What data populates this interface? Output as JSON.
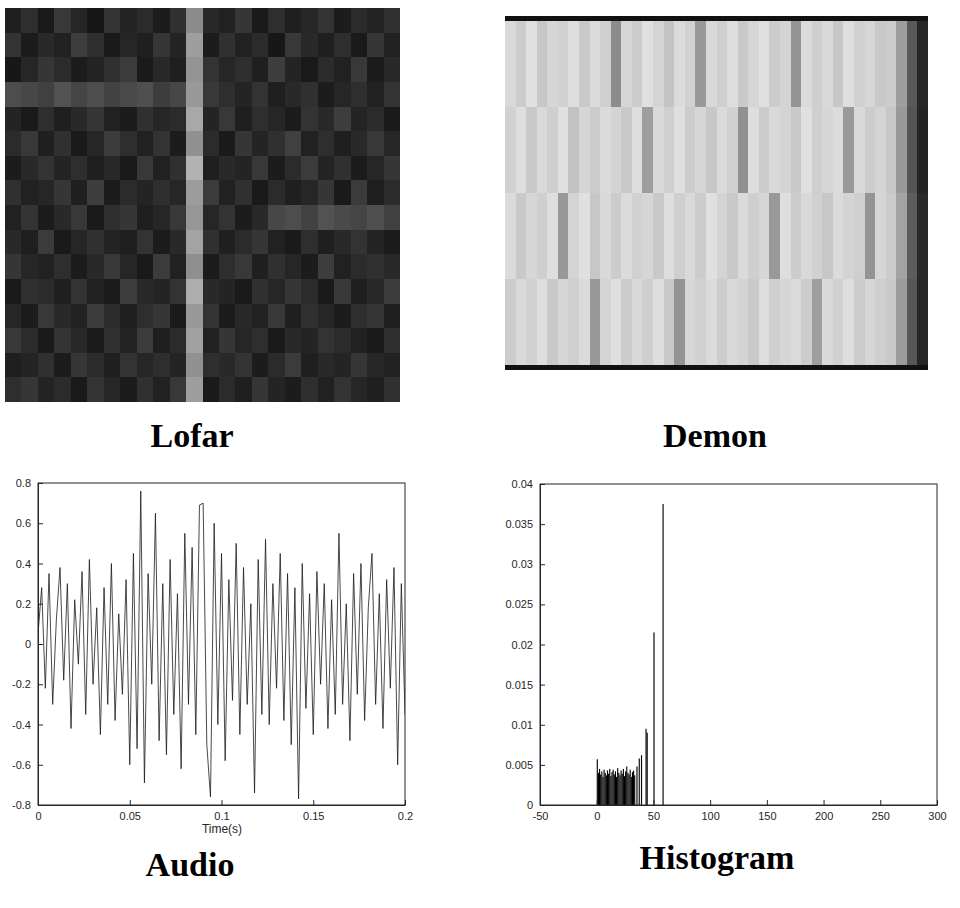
{
  "chart_data": [
    {
      "type": "heatmap",
      "title": "Lofar",
      "tick_labels": false,
      "cells": [
        [
          0.12,
          0.18,
          0.1,
          0.22,
          0.15,
          0.09,
          0.2,
          0.14,
          0.17,
          0.11,
          0.19,
          0.55,
          0.16,
          0.13,
          0.21,
          0.1,
          0.18,
          0.12,
          0.15,
          0.2,
          0.11,
          0.17,
          0.14,
          0.19
        ],
        [
          0.2,
          0.11,
          0.16,
          0.13,
          0.24,
          0.18,
          0.1,
          0.15,
          0.12,
          0.21,
          0.14,
          0.62,
          0.11,
          0.19,
          0.13,
          0.17,
          0.09,
          0.22,
          0.16,
          0.12,
          0.18,
          0.1,
          0.21,
          0.13
        ],
        [
          0.09,
          0.15,
          0.21,
          0.17,
          0.11,
          0.14,
          0.19,
          0.23,
          0.1,
          0.16,
          0.12,
          0.58,
          0.2,
          0.15,
          0.18,
          0.12,
          0.24,
          0.14,
          0.1,
          0.17,
          0.13,
          0.22,
          0.11,
          0.16
        ],
        [
          0.3,
          0.28,
          0.25,
          0.32,
          0.27,
          0.3,
          0.26,
          0.29,
          0.31,
          0.24,
          0.28,
          0.6,
          0.22,
          0.18,
          0.14,
          0.2,
          0.12,
          0.16,
          0.19,
          0.11,
          0.15,
          0.18,
          0.13,
          0.2
        ],
        [
          0.14,
          0.1,
          0.18,
          0.12,
          0.16,
          0.21,
          0.13,
          0.11,
          0.19,
          0.15,
          0.17,
          0.66,
          0.14,
          0.22,
          0.12,
          0.18,
          0.15,
          0.11,
          0.2,
          0.16,
          0.24,
          0.14,
          0.17,
          0.1
        ],
        [
          0.17,
          0.22,
          0.12,
          0.19,
          0.1,
          0.15,
          0.23,
          0.18,
          0.13,
          0.2,
          0.11,
          0.57,
          0.17,
          0.1,
          0.21,
          0.14,
          0.19,
          0.25,
          0.13,
          0.18,
          0.12,
          0.16,
          0.22,
          0.15
        ],
        [
          0.11,
          0.16,
          0.2,
          0.14,
          0.18,
          0.12,
          0.16,
          0.1,
          0.22,
          0.13,
          0.19,
          0.7,
          0.12,
          0.16,
          0.14,
          0.22,
          0.11,
          0.17,
          0.23,
          0.14,
          0.19,
          0.11,
          0.15,
          0.21
        ],
        [
          0.19,
          0.13,
          0.15,
          0.21,
          0.12,
          0.24,
          0.11,
          0.17,
          0.14,
          0.18,
          0.15,
          0.61,
          0.23,
          0.13,
          0.19,
          0.1,
          0.17,
          0.12,
          0.15,
          0.21,
          0.1,
          0.23,
          0.12,
          0.17
        ],
        [
          0.13,
          0.2,
          0.11,
          0.16,
          0.22,
          0.1,
          0.18,
          0.21,
          0.12,
          0.15,
          0.22,
          0.59,
          0.15,
          0.2,
          0.11,
          0.16,
          0.28,
          0.3,
          0.26,
          0.32,
          0.29,
          0.27,
          0.31,
          0.25
        ],
        [
          0.16,
          0.12,
          0.23,
          0.1,
          0.15,
          0.19,
          0.14,
          0.12,
          0.2,
          0.11,
          0.16,
          0.64,
          0.19,
          0.12,
          0.17,
          0.21,
          0.13,
          0.1,
          0.18,
          0.12,
          0.16,
          0.2,
          0.14,
          0.11
        ],
        [
          0.21,
          0.15,
          0.13,
          0.18,
          0.11,
          0.16,
          0.22,
          0.15,
          0.1,
          0.23,
          0.13,
          0.56,
          0.11,
          0.18,
          0.22,
          0.12,
          0.19,
          0.15,
          0.11,
          0.24,
          0.13,
          0.17,
          0.19,
          0.16
        ],
        [
          0.1,
          0.19,
          0.17,
          0.12,
          0.2,
          0.13,
          0.11,
          0.24,
          0.16,
          0.14,
          0.2,
          0.68,
          0.16,
          0.14,
          0.1,
          0.19,
          0.15,
          0.21,
          0.17,
          0.1,
          0.22,
          0.12,
          0.16,
          0.23
        ],
        [
          0.15,
          0.11,
          0.22,
          0.16,
          0.13,
          0.23,
          0.17,
          0.12,
          0.18,
          0.21,
          0.1,
          0.6,
          0.2,
          0.11,
          0.16,
          0.13,
          0.22,
          0.12,
          0.19,
          0.15,
          0.11,
          0.18,
          0.21,
          0.12
        ],
        [
          0.22,
          0.17,
          0.1,
          0.2,
          0.16,
          0.11,
          0.19,
          0.14,
          0.23,
          0.12,
          0.17,
          0.63,
          0.13,
          0.21,
          0.15,
          0.18,
          0.1,
          0.16,
          0.14,
          0.2,
          0.17,
          0.13,
          0.1,
          0.18
        ],
        [
          0.12,
          0.14,
          0.19,
          0.11,
          0.21,
          0.17,
          0.12,
          0.2,
          0.15,
          0.18,
          0.14,
          0.57,
          0.18,
          0.16,
          0.2,
          0.11,
          0.17,
          0.23,
          0.12,
          0.16,
          0.14,
          0.21,
          0.15,
          0.13
        ],
        [
          0.18,
          0.21,
          0.14,
          0.17,
          0.1,
          0.2,
          0.15,
          0.11,
          0.19,
          0.13,
          0.22,
          0.62,
          0.1,
          0.17,
          0.12,
          0.21,
          0.14,
          0.11,
          0.18,
          0.13,
          0.2,
          0.15,
          0.12,
          0.19
        ]
      ]
    },
    {
      "type": "heatmap",
      "title": "Demon",
      "tick_labels": false,
      "cells": [
        [
          0.85,
          0.8,
          0.88,
          0.78,
          0.84,
          0.82,
          0.87,
          0.79,
          0.86,
          0.81,
          0.55,
          0.84,
          0.8,
          0.88,
          0.83,
          0.77,
          0.86,
          0.82,
          0.6,
          0.85,
          0.81,
          0.87,
          0.79,
          0.84,
          0.88,
          0.8,
          0.83,
          0.58,
          0.86,
          0.81,
          0.85,
          0.78,
          0.87,
          0.82,
          0.84,
          0.79,
          0.8,
          0.62,
          0.35,
          0.15
        ],
        [
          0.82,
          0.87,
          0.79,
          0.85,
          0.81,
          0.88,
          0.76,
          0.84,
          0.8,
          0.86,
          0.83,
          0.79,
          0.87,
          0.62,
          0.85,
          0.81,
          0.88,
          0.8,
          0.84,
          0.78,
          0.86,
          0.82,
          0.57,
          0.87,
          0.8,
          0.85,
          0.83,
          0.79,
          0.88,
          0.81,
          0.84,
          0.86,
          0.6,
          0.85,
          0.8,
          0.83,
          0.78,
          0.6,
          0.33,
          0.14
        ],
        [
          0.86,
          0.79,
          0.84,
          0.81,
          0.87,
          0.6,
          0.83,
          0.88,
          0.78,
          0.85,
          0.8,
          0.86,
          0.82,
          0.84,
          0.79,
          0.87,
          0.81,
          0.85,
          0.8,
          0.88,
          0.83,
          0.79,
          0.86,
          0.81,
          0.84,
          0.6,
          0.87,
          0.8,
          0.85,
          0.82,
          0.78,
          0.86,
          0.83,
          0.81,
          0.58,
          0.84,
          0.8,
          0.64,
          0.36,
          0.16
        ],
        [
          0.8,
          0.85,
          0.82,
          0.87,
          0.79,
          0.84,
          0.81,
          0.86,
          0.6,
          0.83,
          0.88,
          0.8,
          0.85,
          0.81,
          0.87,
          0.79,
          0.58,
          0.84,
          0.82,
          0.86,
          0.8,
          0.85,
          0.83,
          0.79,
          0.87,
          0.81,
          0.84,
          0.86,
          0.8,
          0.62,
          0.85,
          0.82,
          0.87,
          0.8,
          0.84,
          0.81,
          0.79,
          0.61,
          0.34,
          0.15
        ]
      ]
    },
    {
      "type": "line",
      "title": "Audio",
      "x_label": "Time(s)",
      "color": "#1a1a1a",
      "xlim": [
        0,
        0.2
      ],
      "xticks": [
        0,
        0.05,
        0.1,
        0.15,
        0.2
      ],
      "ylim": [
        -0.8,
        0.8
      ],
      "yticks": [
        -0.8,
        -0.6,
        -0.4,
        -0.2,
        0,
        0.2,
        0.4,
        0.6,
        0.8
      ],
      "x": [
        0,
        0.002,
        0.004,
        0.006,
        0.008,
        0.01,
        0.012,
        0.014,
        0.016,
        0.018,
        0.02,
        0.022,
        0.024,
        0.026,
        0.028,
        0.03,
        0.032,
        0.034,
        0.036,
        0.038,
        0.04,
        0.042,
        0.044,
        0.046,
        0.048,
        0.05,
        0.052,
        0.054,
        0.056,
        0.058,
        0.06,
        0.062,
        0.064,
        0.066,
        0.068,
        0.07,
        0.072,
        0.074,
        0.076,
        0.078,
        0.08,
        0.082,
        0.084,
        0.086,
        0.088,
        0.09,
        0.092,
        0.094,
        0.096,
        0.098,
        0.1,
        0.102,
        0.104,
        0.106,
        0.108,
        0.11,
        0.112,
        0.114,
        0.116,
        0.118,
        0.12,
        0.122,
        0.124,
        0.126,
        0.128,
        0.13,
        0.132,
        0.134,
        0.136,
        0.138,
        0.14,
        0.142,
        0.144,
        0.146,
        0.148,
        0.15,
        0.152,
        0.154,
        0.156,
        0.158,
        0.16,
        0.162,
        0.164,
        0.166,
        0.168,
        0.17,
        0.172,
        0.174,
        0.176,
        0.178,
        0.18,
        0.182,
        0.184,
        0.186,
        0.188,
        0.19,
        0.192,
        0.194,
        0.196,
        0.198,
        0.2
      ],
      "values": [
        0.05,
        0.28,
        -0.22,
        0.35,
        -0.3,
        0.12,
        0.38,
        -0.18,
        0.3,
        -0.42,
        0.22,
        -0.1,
        0.36,
        -0.35,
        0.42,
        -0.2,
        0.18,
        -0.45,
        0.28,
        -0.3,
        0.4,
        -0.38,
        0.15,
        -0.25,
        0.32,
        -0.6,
        0.45,
        -0.52,
        0.76,
        -0.69,
        0.35,
        -0.2,
        0.65,
        -0.48,
        0.3,
        -0.55,
        0.42,
        -0.35,
        0.25,
        -0.62,
        0.55,
        -0.3,
        0.48,
        -0.45,
        0.69,
        0.7,
        -0.5,
        -0.76,
        0.6,
        -0.4,
        0.45,
        -0.58,
        0.32,
        -0.28,
        0.5,
        -0.45,
        0.38,
        -0.3,
        0.2,
        -0.74,
        0.42,
        -0.35,
        0.52,
        -0.4,
        0.3,
        -0.22,
        0.45,
        -0.38,
        0.35,
        -0.5,
        0.28,
        -0.77,
        0.4,
        -0.32,
        0.25,
        -0.45,
        0.36,
        -0.2,
        0.3,
        -0.42,
        0.22,
        -0.35,
        0.55,
        -0.3,
        0.2,
        -0.48,
        0.35,
        -0.25,
        0.4,
        -0.38,
        0.18,
        0.45,
        -0.3,
        0.25,
        -0.42,
        0.32,
        -0.22,
        0.38,
        -0.6,
        0.3,
        -0.35
      ]
    },
    {
      "type": "histogram",
      "title": "Histogram",
      "color": "#000000",
      "xlim": [
        -50,
        300
      ],
      "xticks": [
        -50,
        0,
        50,
        100,
        150,
        200,
        250,
        300
      ],
      "ylim": [
        0,
        0.04
      ],
      "yticks": [
        0,
        0.005,
        0.01,
        0.015,
        0.02,
        0.025,
        0.03,
        0.035,
        0.04
      ],
      "bins": [
        0,
        1,
        2,
        3,
        4,
        5,
        6,
        7,
        8,
        9,
        10,
        11,
        12,
        13,
        14,
        15,
        16,
        17,
        18,
        19,
        20,
        21,
        22,
        23,
        24,
        25,
        26,
        27,
        28,
        29,
        30,
        31,
        32,
        33,
        34,
        35,
        36,
        37,
        38,
        39,
        40,
        41,
        42,
        43,
        44,
        45,
        46,
        47,
        48,
        49,
        50,
        51,
        52,
        53,
        54,
        55,
        56,
        57,
        58,
        59,
        60
      ],
      "values": [
        0.0057,
        0.004,
        0.0045,
        0.0038,
        0.0042,
        0.0035,
        0.0044,
        0.004,
        0.0037,
        0.0043,
        0.0039,
        0.0045,
        0.0036,
        0.0041,
        0.0044,
        0.0038,
        0.0042,
        0.0035,
        0.0046,
        0.004,
        0.0037,
        0.0043,
        0.0039,
        0.0045,
        0.0036,
        0.0042,
        0.0048,
        0.004,
        0.0038,
        0.0044,
        0.0035,
        0.0041,
        0.0043,
        0.0037,
        0,
        0.0048,
        0,
        0.0058,
        0,
        0.0062,
        0,
        0,
        0,
        0.0095,
        0.009,
        0,
        0,
        0,
        0,
        0,
        0.0215,
        0,
        0,
        0,
        0,
        0,
        0,
        0,
        0.0375,
        0
      ]
    }
  ]
}
